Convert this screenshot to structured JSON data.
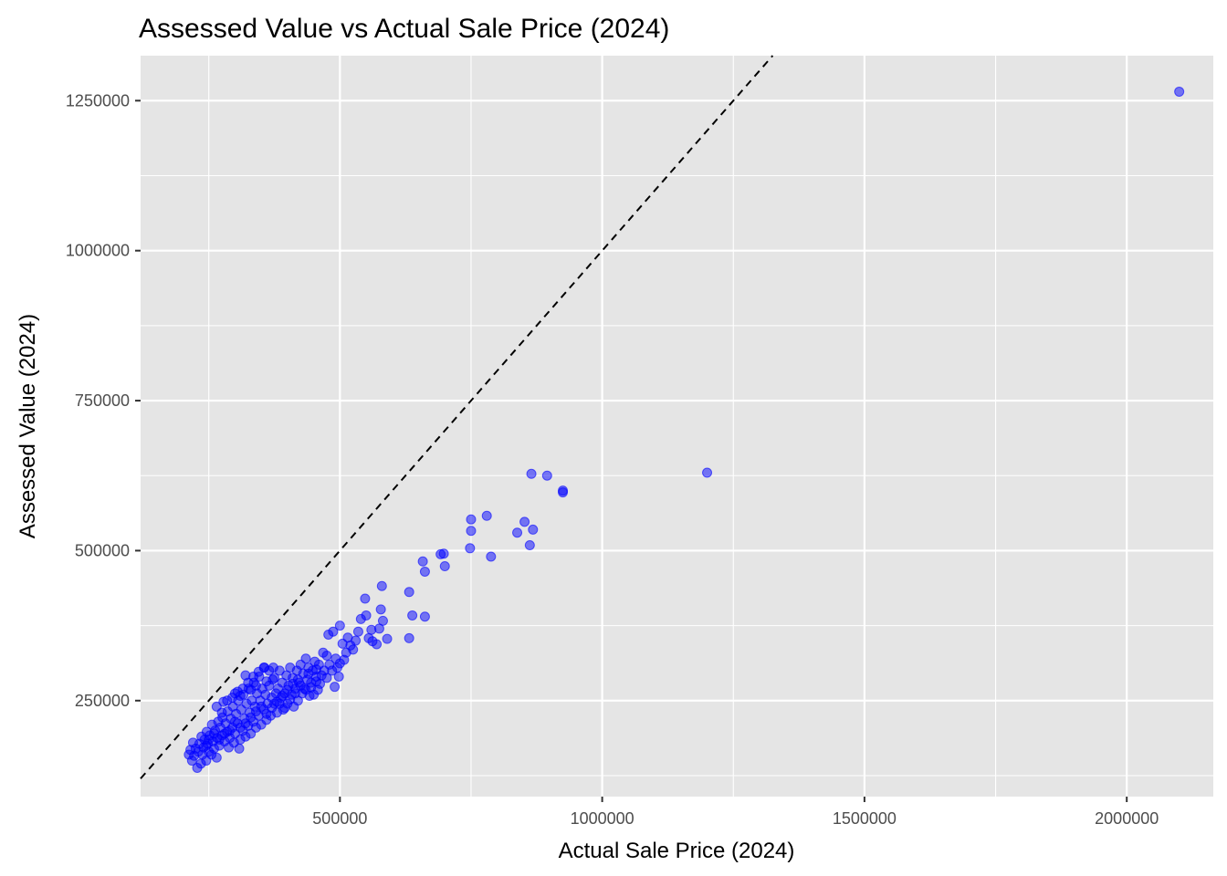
{
  "chart_data": {
    "type": "scatter",
    "title": "Assessed Value vs Actual Sale Price (2024)",
    "xlabel": "Actual Sale Price (2024)",
    "ylabel": "Assessed Value (2024)",
    "xlim": [
      120000,
      2165000
    ],
    "ylim": [
      90000,
      1325000
    ],
    "x_ticks": [
      500000,
      1000000,
      1500000,
      2000000
    ],
    "y_ticks": [
      250000,
      500000,
      750000,
      1000000,
      1250000
    ],
    "x_tick_labels": [
      "500000",
      "1000000",
      "1500000",
      "2000000"
    ],
    "y_tick_labels": [
      "250000",
      "500000",
      "750000",
      "1000000",
      "1250000"
    ],
    "grid": true,
    "legend": "none",
    "reference_line": {
      "type": "identity",
      "style": "dashed",
      "color": "#000000"
    },
    "colors": {
      "points": "#0000ff",
      "panel": "#e5e5e5",
      "grid": "#ffffff"
    },
    "points": [
      [
        2100000,
        1265000
      ],
      [
        1200000,
        630000
      ],
      [
        925000,
        600000
      ],
      [
        925000,
        597000
      ],
      [
        895000,
        625000
      ],
      [
        865000,
        628000
      ],
      [
        868000,
        535000
      ],
      [
        862000,
        509000
      ],
      [
        852000,
        548000
      ],
      [
        838000,
        530000
      ],
      [
        788000,
        490000
      ],
      [
        780000,
        558000
      ],
      [
        750000,
        552000
      ],
      [
        750000,
        533000
      ],
      [
        748000,
        504000
      ],
      [
        700000,
        474000
      ],
      [
        698000,
        495000
      ],
      [
        692000,
        494000
      ],
      [
        662000,
        465000
      ],
      [
        658000,
        482000
      ],
      [
        662000,
        390000
      ],
      [
        638000,
        392000
      ],
      [
        632000,
        431000
      ],
      [
        632000,
        354000
      ],
      [
        590000,
        353000
      ],
      [
        582000,
        383000
      ],
      [
        580000,
        441000
      ],
      [
        578000,
        402000
      ],
      [
        575000,
        370000
      ],
      [
        570000,
        344000
      ],
      [
        562000,
        349000
      ],
      [
        560000,
        368000
      ],
      [
        555000,
        354000
      ],
      [
        550000,
        392000
      ],
      [
        548000,
        420000
      ],
      [
        540000,
        386000
      ],
      [
        535000,
        365000
      ],
      [
        530000,
        350000
      ],
      [
        525000,
        335000
      ],
      [
        520000,
        342000
      ],
      [
        515000,
        355000
      ],
      [
        512000,
        330000
      ],
      [
        508000,
        318000
      ],
      [
        505000,
        345000
      ],
      [
        500000,
        375000
      ],
      [
        500000,
        312000
      ],
      [
        498000,
        290000
      ],
      [
        495000,
        305000
      ],
      [
        492000,
        320000
      ],
      [
        490000,
        273000
      ],
      [
        487000,
        365000
      ],
      [
        485000,
        300000
      ],
      [
        480000,
        310000
      ],
      [
        478000,
        360000
      ],
      [
        475000,
        325000
      ],
      [
        475000,
        288000
      ],
      [
        470000,
        300000
      ],
      [
        468000,
        330000
      ],
      [
        462000,
        278000
      ],
      [
        460000,
        310000
      ],
      [
        458000,
        268000
      ],
      [
        455000,
        290000
      ],
      [
        452000,
        315000
      ],
      [
        450000,
        260000
      ],
      [
        448000,
        300000
      ],
      [
        445000,
        280000
      ],
      [
        442000,
        258000
      ],
      [
        440000,
        305000
      ],
      [
        438000,
        285000
      ],
      [
        435000,
        320000
      ],
      [
        432000,
        270000
      ],
      [
        430000,
        295000
      ],
      [
        428000,
        262000
      ],
      [
        425000,
        310000
      ],
      [
        422000,
        280000
      ],
      [
        420000,
        250000
      ],
      [
        418000,
        300000
      ],
      [
        415000,
        270000
      ],
      [
        412000,
        240000
      ],
      [
        410000,
        288000
      ],
      [
        408000,
        260000
      ],
      [
        405000,
        305000
      ],
      [
        402000,
        275000
      ],
      [
        400000,
        245000
      ],
      [
        398000,
        292000
      ],
      [
        395000,
        262000
      ],
      [
        392000,
        235000
      ],
      [
        390000,
        280000
      ],
      [
        388000,
        255000
      ],
      [
        385000,
        300000
      ],
      [
        382000,
        270000
      ],
      [
        380000,
        230000
      ],
      [
        378000,
        262000
      ],
      [
        375000,
        245000
      ],
      [
        373000,
        305000
      ],
      [
        372000,
        285000
      ],
      [
        370000,
        255000
      ],
      [
        368000,
        225000
      ],
      [
        365000,
        275000
      ],
      [
        362000,
        245000
      ],
      [
        360000,
        218000
      ],
      [
        358000,
        260000
      ],
      [
        356000,
        305000
      ],
      [
        355000,
        235000
      ],
      [
        352000,
        270000
      ],
      [
        350000,
        210000
      ],
      [
        348000,
        250000
      ],
      [
        346000,
        290000
      ],
      [
        345000,
        225000
      ],
      [
        342000,
        262000
      ],
      [
        340000,
        205000
      ],
      [
        338000,
        240000
      ],
      [
        336000,
        280000
      ],
      [
        335000,
        215000
      ],
      [
        332000,
        250000
      ],
      [
        330000,
        195000
      ],
      [
        328000,
        230000
      ],
      [
        326000,
        270000
      ],
      [
        325000,
        208000
      ],
      [
        322000,
        245000
      ],
      [
        320000,
        190000
      ],
      [
        318000,
        220000
      ],
      [
        316000,
        260000
      ],
      [
        315000,
        200000
      ],
      [
        312000,
        235000
      ],
      [
        310000,
        185000
      ],
      [
        308000,
        170000
      ],
      [
        306000,
        250000
      ],
      [
        305000,
        212000
      ],
      [
        302000,
        228000
      ],
      [
        300000,
        195000
      ],
      [
        298000,
        180000
      ],
      [
        296000,
        240000
      ],
      [
        295000,
        205000
      ],
      [
        292000,
        220000
      ],
      [
        290000,
        188000
      ],
      [
        288000,
        172000
      ],
      [
        286000,
        232000
      ],
      [
        285000,
        198000
      ],
      [
        282000,
        212000
      ],
      [
        280000,
        182000
      ],
      [
        278000,
        248000
      ],
      [
        276000,
        222000
      ],
      [
        275000,
        192000
      ],
      [
        272000,
        205000
      ],
      [
        270000,
        175000
      ],
      [
        268000,
        215000
      ],
      [
        266000,
        188000
      ],
      [
        265000,
        155000
      ],
      [
        262000,
        200000
      ],
      [
        260000,
        170000
      ],
      [
        258000,
        182000
      ],
      [
        256000,
        210000
      ],
      [
        255000,
        160000
      ],
      [
        252000,
        192000
      ],
      [
        250000,
        165000
      ],
      [
        248000,
        178000
      ],
      [
        246000,
        198000
      ],
      [
        245000,
        150000
      ],
      [
        242000,
        185000
      ],
      [
        240000,
        172000
      ],
      [
        238000,
        160000
      ],
      [
        236000,
        190000
      ],
      [
        235000,
        145000
      ],
      [
        232000,
        178000
      ],
      [
        230000,
        165000
      ],
      [
        228000,
        138000
      ],
      [
        225000,
        170000
      ],
      [
        222000,
        158000
      ],
      [
        220000,
        180000
      ],
      [
        218000,
        150000
      ],
      [
        215000,
        168000
      ],
      [
        212000,
        160000
      ],
      [
        265000,
        240000
      ],
      [
        275000,
        230000
      ],
      [
        285000,
        250000
      ],
      [
        295000,
        255000
      ],
      [
        305000,
        265000
      ],
      [
        315000,
        270000
      ],
      [
        325000,
        280000
      ],
      [
        335000,
        290000
      ],
      [
        345000,
        298000
      ],
      [
        355000,
        305000
      ],
      [
        365000,
        300000
      ],
      [
        330000,
        268000
      ],
      [
        310000,
        258000
      ],
      [
        300000,
        262000
      ],
      [
        320000,
        292000
      ],
      [
        340000,
        275000
      ],
      [
        360000,
        282000
      ],
      [
        375000,
        288000
      ],
      [
        385000,
        245000
      ],
      [
        395000,
        238000
      ],
      [
        405000,
        252000
      ],
      [
        415000,
        262000
      ],
      [
        425000,
        275000
      ],
      [
        435000,
        268000
      ],
      [
        445000,
        272000
      ],
      [
        455000,
        282000
      ],
      [
        465000,
        292000
      ],
      [
        455000,
        302000
      ],
      [
        440000,
        295000
      ],
      [
        420000,
        285000
      ],
      [
        410000,
        278000
      ],
      [
        400000,
        268000
      ],
      [
        390000,
        258000
      ],
      [
        380000,
        248000
      ],
      [
        370000,
        238000
      ],
      [
        360000,
        228000
      ],
      [
        350000,
        240000
      ],
      [
        340000,
        232000
      ],
      [
        330000,
        222000
      ],
      [
        320000,
        212000
      ],
      [
        310000,
        205000
      ],
      [
        300000,
        215000
      ],
      [
        290000,
        200000
      ],
      [
        280000,
        195000
      ],
      [
        270000,
        185000
      ],
      [
        260000,
        195000
      ],
      [
        250000,
        185000
      ],
      [
        245000,
        175000
      ]
    ]
  }
}
